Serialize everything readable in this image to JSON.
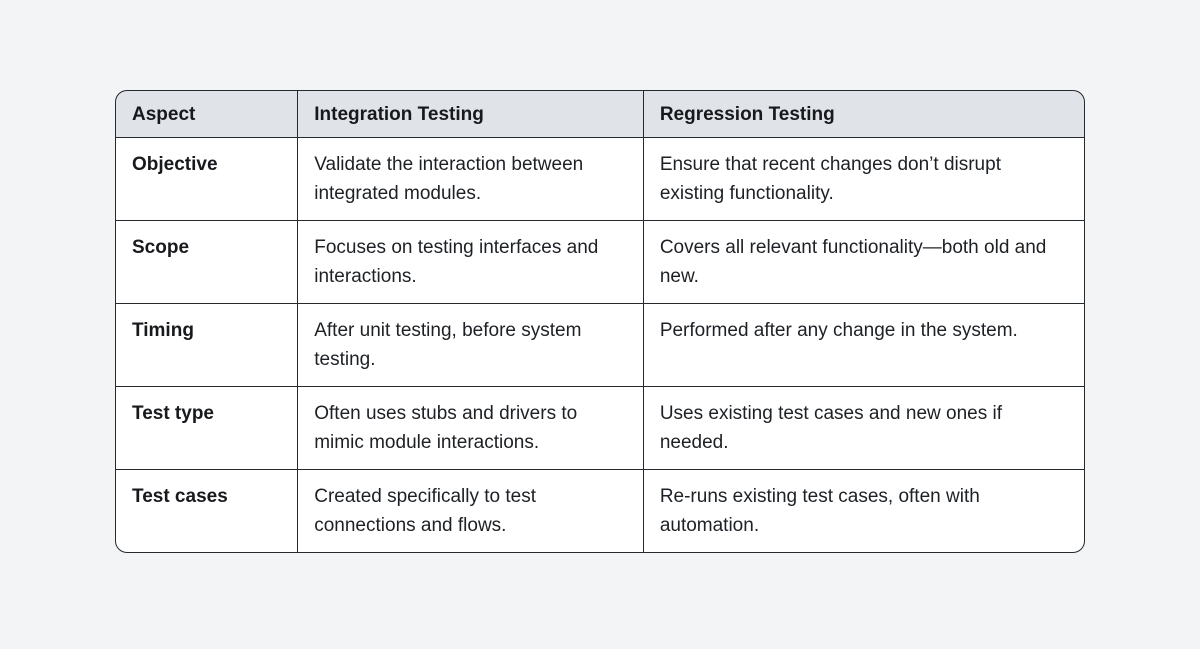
{
  "table": {
    "columns": [
      {
        "label": "Aspect"
      },
      {
        "label": "Integration Testing"
      },
      {
        "label": "Regression Testing"
      }
    ],
    "rows": [
      {
        "aspect": "Objective",
        "integration": "Validate the interaction between integrated modules.",
        "regression": "Ensure that recent changes don’t disrupt existing functionality."
      },
      {
        "aspect": "Scope",
        "integration": "Focuses on testing interfaces and interactions.",
        "regression": "Covers all relevant functionality—both old and new."
      },
      {
        "aspect": "Timing",
        "integration": "After unit testing, before system testing.",
        "regression": "Performed after any change in the system."
      },
      {
        "aspect": "Test type",
        "integration": "Often uses stubs and drivers to mimic module interactions.",
        "regression": "Uses existing test cases and new ones if needed."
      },
      {
        "aspect": "Test cases",
        "integration": "Created specifically to test connections and flows.",
        "regression": "Re-runs existing test cases, often with automation."
      }
    ],
    "colors": {
      "page_background": "#f3f4f6",
      "header_background": "#e0e3e7",
      "cell_background": "#ffffff",
      "border": "#26292e",
      "text": "#1d2125"
    }
  }
}
